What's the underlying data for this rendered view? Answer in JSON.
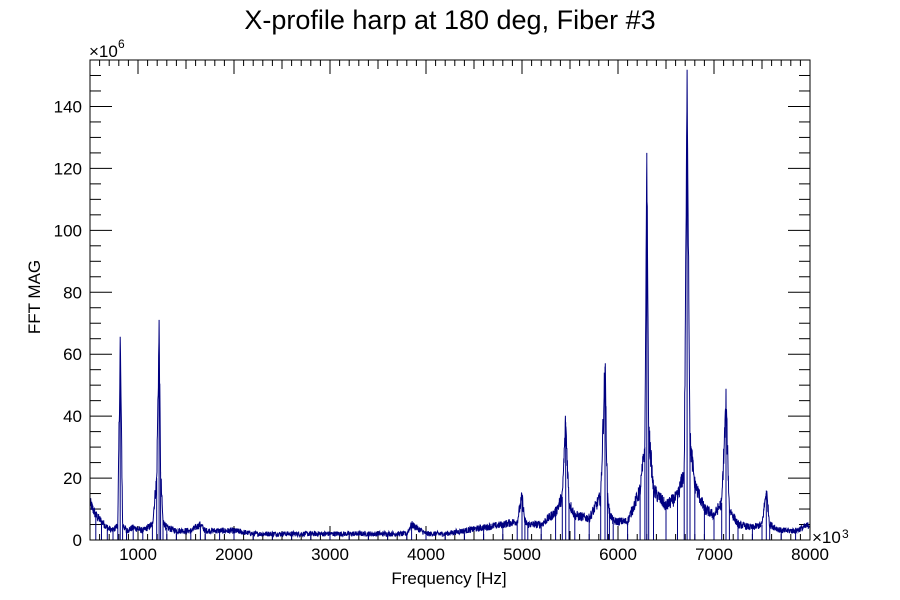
{
  "chart_data": {
    "type": "line",
    "title": "X-profile harp at 180 deg, Fiber #3",
    "xlabel": "Frequency [Hz]",
    "ylabel": "FFT MAG",
    "xlim": [
      500,
      8000
    ],
    "ylim": [
      0,
      155
    ],
    "x_multiplier": {
      "prefix": "×10",
      "exp": "3"
    },
    "y_multiplier": {
      "prefix": "×10",
      "exp": "6"
    },
    "x_ticks": [
      1000,
      2000,
      3000,
      4000,
      5000,
      6000,
      7000,
      8000
    ],
    "x_tick_labels": [
      "1000",
      "2000",
      "3000",
      "4000",
      "5000",
      "6000",
      "7000",
      "8000"
    ],
    "y_ticks": [
      0,
      20,
      40,
      60,
      80,
      100,
      120,
      140
    ],
    "y_tick_labels": [
      "0",
      "20",
      "40",
      "60",
      "80",
      "100",
      "120",
      "140"
    ],
    "line_color": "#000080",
    "grid": false,
    "series": [
      {
        "x": [
          500,
          560,
          620,
          680,
          740,
          790,
          815,
          840,
          880,
          950,
          1050,
          1150,
          1195,
          1220,
          1235,
          1260,
          1300,
          1400,
          1550,
          1650,
          1700,
          1850,
          2000,
          2200,
          2400,
          2600,
          2800,
          3000,
          3200,
          3400,
          3600,
          3800,
          3850,
          4000,
          4200,
          4400,
          4600,
          4800,
          4950,
          5000,
          5030,
          5060,
          5200,
          5350,
          5420,
          5455,
          5490,
          5550,
          5700,
          5820,
          5865,
          5890,
          5910,
          5950,
          6100,
          6230,
          6280,
          6300,
          6320,
          6370,
          6500,
          6620,
          6690,
          6720,
          6750,
          6800,
          6900,
          7000,
          7080,
          7125,
          7160,
          7250,
          7400,
          7500,
          7545,
          7580,
          7700,
          7850,
          8000
        ],
        "y": [
          12,
          8,
          6,
          4,
          3,
          5,
          64,
          5,
          3,
          4,
          3,
          5,
          20,
          68,
          22,
          6,
          4,
          3,
          3,
          5,
          3,
          3,
          3,
          2,
          2,
          2,
          2,
          2,
          2,
          2,
          2,
          2,
          5,
          2,
          2,
          3,
          4,
          5,
          6,
          14,
          6,
          5,
          5,
          9,
          14,
          38,
          12,
          8,
          7,
          14,
          56,
          15,
          9,
          6,
          6,
          16,
          30,
          125,
          35,
          16,
          11,
          14,
          22,
          148,
          32,
          18,
          10,
          8,
          12,
          44,
          10,
          5,
          4,
          5,
          16,
          5,
          3,
          3,
          5
        ]
      }
    ]
  }
}
